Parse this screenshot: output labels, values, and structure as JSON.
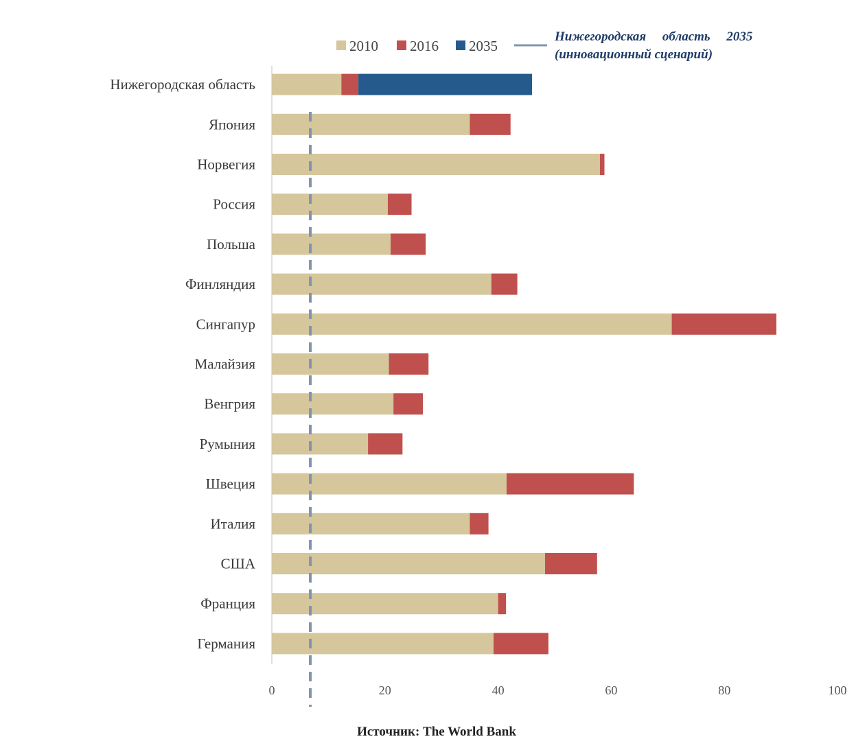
{
  "chart_data": {
    "type": "bar",
    "orientation": "horizontal",
    "stacked": true,
    "categories": [
      "Нижегородская область",
      "Япония",
      "Норвегия",
      "Россия",
      "Польша",
      "Финляндия",
      "Сингапур",
      "Малайзия",
      "Венгрия",
      "Румыния",
      "Швеция",
      "Италия",
      "США",
      "Франция",
      "Германия"
    ],
    "series": [
      {
        "name": "2010",
        "color": "#d5c69c",
        "values": [
          12.3,
          35,
          58,
          20.5,
          21,
          38.8,
          70.7,
          20.7,
          21.5,
          17,
          41.5,
          35,
          48.3,
          40,
          39.2
        ]
      },
      {
        "name": "2016",
        "color": "#c0504d",
        "values": [
          3,
          7.2,
          0.8,
          4.2,
          6.2,
          4.6,
          18.5,
          7,
          5.2,
          6.1,
          22.5,
          3.3,
          9.2,
          1.4,
          9.7
        ]
      },
      {
        "name": "2035",
        "color": "#255a8c",
        "values": [
          30.7,
          0,
          0,
          0,
          0,
          0,
          0,
          0,
          0,
          0,
          0,
          0,
          0,
          0,
          0
        ]
      }
    ],
    "reference_line": {
      "label_line1": "Нижегородская     область     2035",
      "label_line2": "(инновационный сценарий)",
      "value": 6.8,
      "color": "#8094b0"
    },
    "xlim": [
      0,
      100
    ],
    "xticks": [
      0,
      20,
      40,
      60,
      80,
      100
    ],
    "grid": false,
    "legend_position": "top",
    "source": "Источник: The World Bank"
  }
}
